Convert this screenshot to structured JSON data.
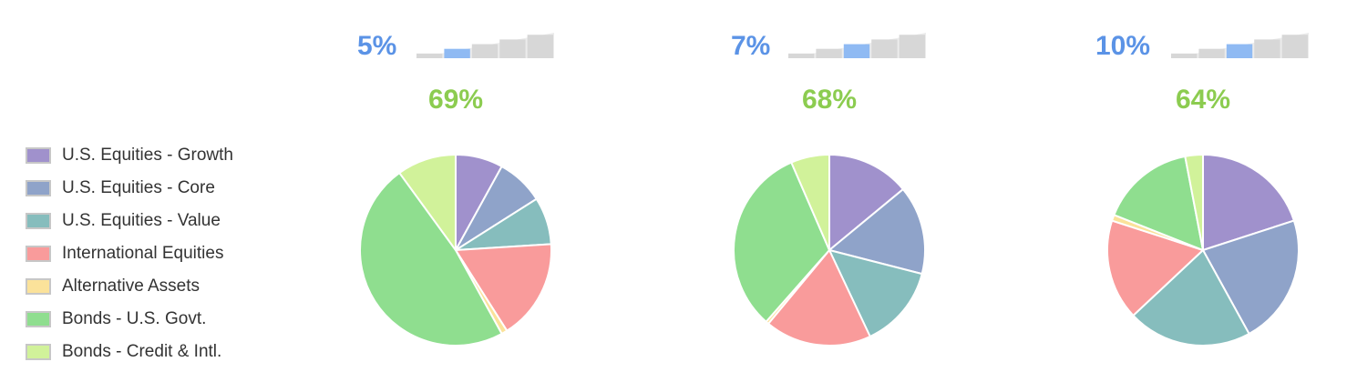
{
  "legend": {
    "items": [
      {
        "label": "U.S. Equities - Growth",
        "color": "#a091cc"
      },
      {
        "label": "U.S. Equities - Core",
        "color": "#8fa3c9"
      },
      {
        "label": "U.S. Equities - Value",
        "color": "#86bdbd"
      },
      {
        "label": "International Equities",
        "color": "#f99b9b"
      },
      {
        "label": "Alternative Assets",
        "color": "#fbe29a"
      },
      {
        "label": "Bonds - U.S. Govt.",
        "color": "#8fde8f"
      },
      {
        "label": "Bonds - Credit & Intl.",
        "color": "#d1f29a"
      }
    ]
  },
  "colors": {
    "risk_text": "#5b93e6",
    "return_text": "#8ccc50",
    "meter_active": "#8fbaf3",
    "meter_inactive": "#d7d7d7"
  },
  "chart_data": [
    {
      "type": "pie",
      "risk": {
        "label": "5%",
        "level": 2,
        "of": 5
      },
      "return_label": "69%",
      "categories": [
        "U.S. Equities - Growth",
        "U.S. Equities - Core",
        "U.S. Equities - Value",
        "International Equities",
        "Alternative Assets",
        "Bonds - U.S. Govt.",
        "Bonds - Credit & Intl."
      ],
      "values": [
        8,
        8,
        8,
        17,
        1,
        48,
        10
      ]
    },
    {
      "type": "pie",
      "risk": {
        "label": "7%",
        "level": 3,
        "of": 5
      },
      "return_label": "68%",
      "categories": [
        "U.S. Equities - Growth",
        "U.S. Equities - Core",
        "U.S. Equities - Value",
        "International Equities",
        "Alternative Assets",
        "Bonds - U.S. Govt.",
        "Bonds - Credit & Intl."
      ],
      "values": [
        14,
        15,
        14,
        18,
        0.5,
        32,
        6.5
      ]
    },
    {
      "type": "pie",
      "risk": {
        "label": "10%",
        "level": 3,
        "of": 5
      },
      "return_label": "64%",
      "categories": [
        "U.S. Equities - Growth",
        "U.S. Equities - Core",
        "U.S. Equities - Value",
        "International Equities",
        "Alternative Assets",
        "Bonds - U.S. Govt.",
        "Bonds - Credit & Intl."
      ],
      "values": [
        20,
        22,
        21,
        17,
        1,
        16,
        3
      ]
    }
  ]
}
